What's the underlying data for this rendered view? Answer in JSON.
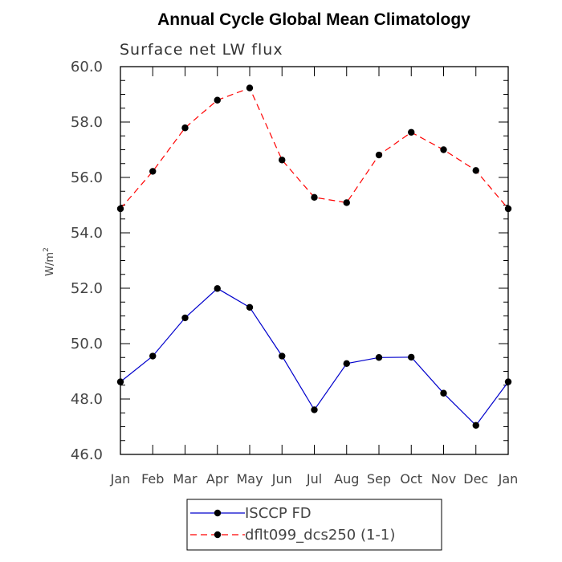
{
  "chart_data": {
    "type": "line",
    "title": "Annual Cycle Global Mean Climatology",
    "subtitle": "Surface net LW flux",
    "ylabel": "W/m",
    "ylabel_sup": "2",
    "xlabel": "",
    "categories": [
      "Jan",
      "Feb",
      "Mar",
      "Apr",
      "May",
      "Jun",
      "Jul",
      "Aug",
      "Sep",
      "Oct",
      "Nov",
      "Dec",
      "Jan"
    ],
    "ylim": [
      46.0,
      60.0
    ],
    "yticks": [
      "46.0",
      "48.0",
      "50.0",
      "52.0",
      "54.0",
      "56.0",
      "58.0",
      "60.0"
    ],
    "grid": false,
    "legend_position": "bottom",
    "series": [
      {
        "name": "ISCCP FD",
        "color": "#0000cc",
        "style": "solid",
        "values": [
          48.62,
          49.55,
          50.93,
          51.99,
          51.31,
          49.55,
          47.61,
          49.28,
          49.5,
          49.51,
          48.21,
          47.05,
          48.62
        ]
      },
      {
        "name": "dflt099_dcs250 (1-1)",
        "color": "#ff0000",
        "style": "dashed",
        "values": [
          54.87,
          56.22,
          57.79,
          58.79,
          59.23,
          56.63,
          55.28,
          55.09,
          56.81,
          57.63,
          57.0,
          56.25,
          54.87
        ]
      }
    ]
  }
}
